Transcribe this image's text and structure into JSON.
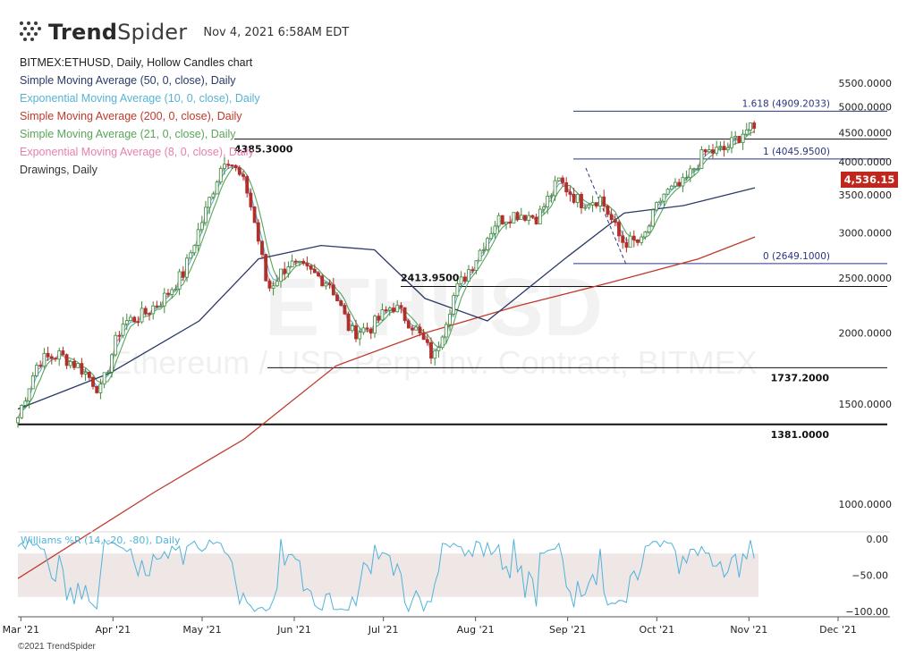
{
  "header": {
    "brand_bold": "Trend",
    "brand_light": "Spider",
    "timestamp": "Nov 4, 2021 6:58AM EDT"
  },
  "legend": [
    {
      "text": "BITMEX:ETHUSD, Daily, Hollow Candles chart",
      "color": "#222222"
    },
    {
      "text": "Simple Moving Average (50, 0, close), Daily",
      "color": "#2b3a67"
    },
    {
      "text": "Exponential Moving Average (10, 0, close), Daily",
      "color": "#56b4d3"
    },
    {
      "text": "Simple Moving Average (200, 0, close), Daily",
      "color": "#c0392b"
    },
    {
      "text": "Simple Moving Average (21, 0, close), Daily",
      "color": "#5aa55a"
    },
    {
      "text": "Exponential Moving Average (8, 0, close), Daily",
      "color": "#e77fb0"
    },
    {
      "text": "Drawings, Daily",
      "color": "#333333"
    }
  ],
  "watermark": {
    "symbol": "ETHUSD",
    "description": "Ethereum / USD Perp. Inv. Contract, BITMEX"
  },
  "copyright": "©2021 TrendSpider",
  "colors": {
    "sma50": "#2b3a67",
    "ema10": "#56b4d3",
    "sma200": "#c0392b",
    "sma21": "#5aa55a",
    "ema8": "#e77fb0",
    "up": "#3a8a3a",
    "down": "#b0302a",
    "fib": "#2a3580",
    "williams": "#4fb3d9",
    "price_badge": "#c0261d"
  },
  "chart_data": [
    {
      "type": "candlestick",
      "title": "BITMEX:ETHUSD, Daily, Hollow Candles chart",
      "x_ticks": [
        "Mar '21",
        "Apr '21",
        "May '21",
        "Jun '21",
        "Jul '21",
        "Aug '21",
        "Sep '21",
        "Oct '21",
        "Nov '21",
        "Dec '21"
      ],
      "y_ticks": [
        "1000.0000",
        "1500.0000",
        "2000.0000",
        "2500.0000",
        "3000.0000",
        "3500.0000",
        "4000.0000",
        "4500.0000",
        "5000.0000",
        "5500.0000"
      ],
      "ylim": [
        700,
        5900
      ],
      "last_price": "4,536.15",
      "closes_weekly": [
        {
          "date": "2021-02-28",
          "close": 1420
        },
        {
          "date": "2021-03-07",
          "close": 1790
        },
        {
          "date": "2021-03-14",
          "close": 1830
        },
        {
          "date": "2021-03-21",
          "close": 1740
        },
        {
          "date": "2021-03-28",
          "close": 1580
        },
        {
          "date": "2021-04-04",
          "close": 2080
        },
        {
          "date": "2021-04-11",
          "close": 2150
        },
        {
          "date": "2021-04-18",
          "close": 2300
        },
        {
          "date": "2021-04-25",
          "close": 2560
        },
        {
          "date": "2021-05-02",
          "close": 3250
        },
        {
          "date": "2021-05-09",
          "close": 4120
        },
        {
          "date": "2021-05-16",
          "close": 3580
        },
        {
          "date": "2021-05-23",
          "close": 2380
        },
        {
          "date": "2021-05-30",
          "close": 2650
        },
        {
          "date": "2021-06-06",
          "close": 2560
        },
        {
          "date": "2021-06-13",
          "close": 2450
        },
        {
          "date": "2021-06-20",
          "close": 2000
        },
        {
          "date": "2021-06-27",
          "close": 2050
        },
        {
          "date": "2021-07-04",
          "close": 2240
        },
        {
          "date": "2021-07-11",
          "close": 2060
        },
        {
          "date": "2021-07-18",
          "close": 1800
        },
        {
          "date": "2021-07-25",
          "close": 2350
        },
        {
          "date": "2021-08-01",
          "close": 2700
        },
        {
          "date": "2021-08-08",
          "close": 3150
        },
        {
          "date": "2021-08-15",
          "close": 3250
        },
        {
          "date": "2021-08-22",
          "close": 3200
        },
        {
          "date": "2021-08-29",
          "close": 3700
        },
        {
          "date": "2021-09-05",
          "close": 3400
        },
        {
          "date": "2021-09-12",
          "close": 3450
        },
        {
          "date": "2021-09-19",
          "close": 2900
        },
        {
          "date": "2021-09-26",
          "close": 2880
        },
        {
          "date": "2021-10-03",
          "close": 3500
        },
        {
          "date": "2021-10-10",
          "close": 3650
        },
        {
          "date": "2021-10-17",
          "close": 4150
        },
        {
          "date": "2021-10-24",
          "close": 4200
        },
        {
          "date": "2021-10-31",
          "close": 4560
        },
        {
          "date": "2021-11-03",
          "close": 4536
        }
      ],
      "horizontal_levels": [
        {
          "label": "4385.3000",
          "value": 4385.3
        },
        {
          "label": "2413.9500",
          "value": 2413.95
        },
        {
          "label": "1737.2000",
          "value": 1737.2
        },
        {
          "label": "1381.0000",
          "value": 1381.0
        }
      ],
      "fibonacci": [
        {
          "label": "1.618 (4909.2033)",
          "value": 4909.2033
        },
        {
          "label": "1 (4045.9500)",
          "value": 4045.95
        },
        {
          "label": "0 (2649.1000)",
          "value": 2649.1
        }
      ],
      "moving_averages": [
        {
          "name": "Simple Moving Average (200, 0, close), Daily",
          "points": [
            {
              "date": "2021-02-28",
              "value": 740
            },
            {
              "date": "2021-04-15",
              "value": 1050
            },
            {
              "date": "2021-05-15",
              "value": 1300
            },
            {
              "date": "2021-06-15",
              "value": 1750
            },
            {
              "date": "2021-07-15",
              "value": 2000
            },
            {
              "date": "2021-08-15",
              "value": 2230
            },
            {
              "date": "2021-09-15",
              "value": 2450
            },
            {
              "date": "2021-10-15",
              "value": 2700
            },
            {
              "date": "2021-11-03",
              "value": 2950
            }
          ]
        },
        {
          "name": "Simple Moving Average (50, 0, close), Daily",
          "points": [
            {
              "date": "2021-02-28",
              "value": 1470
            },
            {
              "date": "2021-03-31",
              "value": 1700
            },
            {
              "date": "2021-04-30",
              "value": 2100
            },
            {
              "date": "2021-05-20",
              "value": 2700
            },
            {
              "date": "2021-06-10",
              "value": 2850
            },
            {
              "date": "2021-06-28",
              "value": 2800
            },
            {
              "date": "2021-07-15",
              "value": 2300
            },
            {
              "date": "2021-08-05",
              "value": 2100
            },
            {
              "date": "2021-08-31",
              "value": 2700
            },
            {
              "date": "2021-09-20",
              "value": 3250
            },
            {
              "date": "2021-10-10",
              "value": 3350
            },
            {
              "date": "2021-11-03",
              "value": 3600
            }
          ]
        }
      ]
    },
    {
      "type": "line",
      "title": "Williams %R (14, -20, -80), Daily",
      "y_ticks": [
        "0.00",
        "−50.00",
        "−100.00"
      ],
      "ylim": [
        -100,
        0
      ],
      "band": [
        -80,
        -20
      ]
    }
  ]
}
